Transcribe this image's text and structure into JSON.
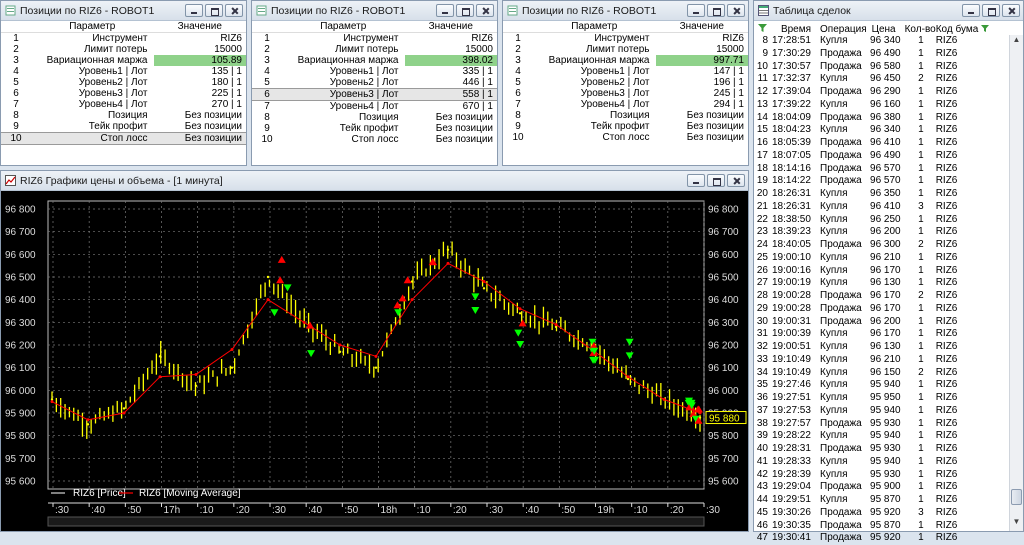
{
  "position_windows": [
    {
      "title": "Позиции по RIZ6 - ROBOT1",
      "header": {
        "param": "Параметр",
        "value": "Значение"
      },
      "rows": [
        {
          "n": "1",
          "param": "Инструмент",
          "value": "RIZ6"
        },
        {
          "n": "2",
          "param": "Лимит потерь",
          "value": "15000"
        },
        {
          "n": "3",
          "param": "Вариационная маржа",
          "value": "105.89"
        },
        {
          "n": "4",
          "param": "Уровень1 | Лот",
          "value": "135 | 1"
        },
        {
          "n": "5",
          "param": "Уровень2 | Лот",
          "value": "180 | 1"
        },
        {
          "n": "6",
          "param": "Уровень3 | Лот",
          "value": "225 | 1"
        },
        {
          "n": "7",
          "param": "Уровень4 | Лот",
          "value": "270 | 1"
        },
        {
          "n": "8",
          "param": "Позиция",
          "value": "Без позиции"
        },
        {
          "n": "9",
          "param": "Тейк профит",
          "value": "Без позиции"
        },
        {
          "n": "10",
          "param": "Стоп лосс",
          "value": "Без позиции"
        }
      ]
    },
    {
      "title": "Позиции по RIZ6 - ROBOT1",
      "header": {
        "param": "Параметр",
        "value": "Значение"
      },
      "rows": [
        {
          "n": "1",
          "param": "Инструмент",
          "value": "RIZ6"
        },
        {
          "n": "2",
          "param": "Лимит потерь",
          "value": "15000"
        },
        {
          "n": "3",
          "param": "Вариационная маржа",
          "value": "398.02"
        },
        {
          "n": "4",
          "param": "Уровень1 | Лот",
          "value": "335 | 1"
        },
        {
          "n": "5",
          "param": "Уровень2 | Лот",
          "value": "446 | 1"
        },
        {
          "n": "6",
          "param": "Уровень3 | Лот",
          "value": "558 | 1"
        },
        {
          "n": "7",
          "param": "Уровень4 | Лот",
          "value": "670 | 1"
        },
        {
          "n": "8",
          "param": "Позиция",
          "value": "Без позиции"
        },
        {
          "n": "9",
          "param": "Тейк профит",
          "value": "Без позиции"
        },
        {
          "n": "10",
          "param": "Стоп лосс",
          "value": "Без позиции"
        }
      ]
    },
    {
      "title": "Позиции по RIZ6 - ROBOT1",
      "header": {
        "param": "Параметр",
        "value": "Значение"
      },
      "rows": [
        {
          "n": "1",
          "param": "Инструмент",
          "value": "RIZ6"
        },
        {
          "n": "2",
          "param": "Лимит потерь",
          "value": "15000"
        },
        {
          "n": "3",
          "param": "Вариационная маржа",
          "value": "997.71"
        },
        {
          "n": "4",
          "param": "Уровень1 | Лот",
          "value": "147 | 1"
        },
        {
          "n": "5",
          "param": "Уровень2 | Лот",
          "value": "196 | 1"
        },
        {
          "n": "6",
          "param": "Уровень3 | Лот",
          "value": "245 | 1"
        },
        {
          "n": "7",
          "param": "Уровень4 | Лот",
          "value": "294 | 1"
        },
        {
          "n": "8",
          "param": "Позиция",
          "value": "Без позиции"
        },
        {
          "n": "9",
          "param": "Тейк профит",
          "value": "Без позиции"
        },
        {
          "n": "10",
          "param": "Стоп лосс",
          "value": "Без позиции"
        }
      ]
    }
  ],
  "chart_window": {
    "title": "RIZ6 Графики цены и объема - [1 минута]",
    "legend": [
      "RIZ6 [Price]",
      "RIZ6 [Moving Average]"
    ],
    "y_ticks": [
      "96 800",
      "96 700",
      "96 600",
      "96 500",
      "96 400",
      "96 300",
      "96 200",
      "96 100",
      "96 000",
      "95 900",
      "95 800",
      "95 700",
      "95 600"
    ],
    "last_price": "95 880",
    "x_ticks": [
      ":30",
      ":40",
      ":50",
      "17h",
      ":10",
      ":20",
      ":30",
      ":40",
      ":50",
      "18h",
      ":10",
      ":20",
      ":30",
      ":40",
      ":50",
      "19h",
      ":10",
      ":20",
      ":30"
    ],
    "colors": {
      "price": "#ffff00",
      "ma": "#ff0000",
      "buy": "#00ff00",
      "sell": "#ff0000",
      "grid": "#7a7a7a"
    }
  },
  "chart_data": {
    "type": "line",
    "ylim": [
      95600,
      96800
    ],
    "series": [
      {
        "name": "RIZ6 [Price]",
        "x": [
          "16h25",
          "16h40",
          "16h55",
          "17h05",
          "17h15",
          "17h25",
          "17h32",
          "17h40",
          "17h50",
          "18h00",
          "18h10",
          "18h18",
          "18h30",
          "18h45",
          "18h55",
          "19h05",
          "19h15",
          "19h25",
          "19h30"
        ],
        "values": [
          95960,
          95850,
          95920,
          96150,
          96020,
          96100,
          96500,
          96300,
          96170,
          96100,
          96480,
          96620,
          96450,
          96340,
          96280,
          96200,
          96050,
          95960,
          95880
        ]
      },
      {
        "name": "RIZ6 [Moving Average]",
        "x": [
          "16h25",
          "16h40",
          "16h55",
          "17h05",
          "17h15",
          "17h25",
          "17h32",
          "17h40",
          "17h50",
          "18h00",
          "18h10",
          "18h18",
          "18h30",
          "18h45",
          "18h55",
          "19h05",
          "19h15",
          "19h25",
          "19h30"
        ],
        "values": [
          95950,
          95870,
          95900,
          96060,
          96070,
          96180,
          96400,
          96300,
          96200,
          96150,
          96400,
          96560,
          96480,
          96360,
          96290,
          96180,
          96060,
          95960,
          95900
        ]
      }
    ]
  },
  "deals_window": {
    "title": "Таблица сделок",
    "headers": [
      "Время",
      "Операция",
      "Цена",
      "Кол-во",
      "Код бума"
    ],
    "rows": [
      [
        "8",
        "17:28:51",
        "Купля",
        "96 340",
        "1",
        "RIZ6"
      ],
      [
        "9",
        "17:30:29",
        "Продажа",
        "96 490",
        "1",
        "RIZ6"
      ],
      [
        "10",
        "17:30:57",
        "Продажа",
        "96 580",
        "1",
        "RIZ6"
      ],
      [
        "11",
        "17:32:37",
        "Купля",
        "96 450",
        "2",
        "RIZ6"
      ],
      [
        "12",
        "17:39:04",
        "Продажа",
        "96 290",
        "1",
        "RIZ6"
      ],
      [
        "13",
        "17:39:22",
        "Купля",
        "96 160",
        "1",
        "RIZ6"
      ],
      [
        "14",
        "18:04:09",
        "Продажа",
        "96 380",
        "1",
        "RIZ6"
      ],
      [
        "15",
        "18:04:23",
        "Купля",
        "96 340",
        "1",
        "RIZ6"
      ],
      [
        "16",
        "18:05:39",
        "Продажа",
        "96 410",
        "1",
        "RIZ6"
      ],
      [
        "17",
        "18:07:05",
        "Продажа",
        "96 490",
        "1",
        "RIZ6"
      ],
      [
        "18",
        "18:14:16",
        "Продажа",
        "96 570",
        "1",
        "RIZ6"
      ],
      [
        "19",
        "18:14:22",
        "Продажа",
        "96 570",
        "1",
        "RIZ6"
      ],
      [
        "20",
        "18:26:31",
        "Купля",
        "96 350",
        "1",
        "RIZ6"
      ],
      [
        "21",
        "18:26:31",
        "Купля",
        "96 410",
        "3",
        "RIZ6"
      ],
      [
        "22",
        "18:38:50",
        "Купля",
        "96 250",
        "1",
        "RIZ6"
      ],
      [
        "23",
        "18:39:23",
        "Купля",
        "96 200",
        "1",
        "RIZ6"
      ],
      [
        "24",
        "18:40:05",
        "Продажа",
        "96 300",
        "2",
        "RIZ6"
      ],
      [
        "25",
        "19:00:10",
        "Купля",
        "96 210",
        "1",
        "RIZ6"
      ],
      [
        "26",
        "19:00:16",
        "Купля",
        "96 170",
        "1",
        "RIZ6"
      ],
      [
        "27",
        "19:00:19",
        "Купля",
        "96 130",
        "1",
        "RIZ6"
      ],
      [
        "28",
        "19:00:28",
        "Продажа",
        "96 170",
        "2",
        "RIZ6"
      ],
      [
        "29",
        "19:00:28",
        "Продажа",
        "96 170",
        "1",
        "RIZ6"
      ],
      [
        "30",
        "19:00:31",
        "Продажа",
        "96 200",
        "1",
        "RIZ6"
      ],
      [
        "31",
        "19:00:39",
        "Купля",
        "96 170",
        "1",
        "RIZ6"
      ],
      [
        "32",
        "19:00:51",
        "Купля",
        "96 130",
        "1",
        "RIZ6"
      ],
      [
        "33",
        "19:10:49",
        "Купля",
        "96 210",
        "1",
        "RIZ6"
      ],
      [
        "34",
        "19:10:49",
        "Купля",
        "96 150",
        "2",
        "RIZ6"
      ],
      [
        "35",
        "19:27:46",
        "Купля",
        "95 940",
        "1",
        "RIZ6"
      ],
      [
        "36",
        "19:27:51",
        "Купля",
        "95 950",
        "1",
        "RIZ6"
      ],
      [
        "37",
        "19:27:53",
        "Купля",
        "95 940",
        "1",
        "RIZ6"
      ],
      [
        "38",
        "19:27:57",
        "Продажа",
        "95 930",
        "1",
        "RIZ6"
      ],
      [
        "39",
        "19:28:22",
        "Купля",
        "95 940",
        "1",
        "RIZ6"
      ],
      [
        "40",
        "19:28:31",
        "Продажа",
        "95 930",
        "1",
        "RIZ6"
      ],
      [
        "41",
        "19:28:33",
        "Купля",
        "95 940",
        "1",
        "RIZ6"
      ],
      [
        "42",
        "19:28:39",
        "Купля",
        "95 930",
        "1",
        "RIZ6"
      ],
      [
        "43",
        "19:29:04",
        "Продажа",
        "95 900",
        "1",
        "RIZ6"
      ],
      [
        "44",
        "19:29:51",
        "Купля",
        "95 870",
        "1",
        "RIZ6"
      ],
      [
        "45",
        "19:30:26",
        "Продажа",
        "95 920",
        "3",
        "RIZ6"
      ],
      [
        "46",
        "19:30:35",
        "Продажа",
        "95 870",
        "1",
        "RIZ6"
      ],
      [
        "47",
        "19:30:41",
        "Продажа",
        "95 920",
        "1",
        "RIZ6"
      ]
    ]
  }
}
